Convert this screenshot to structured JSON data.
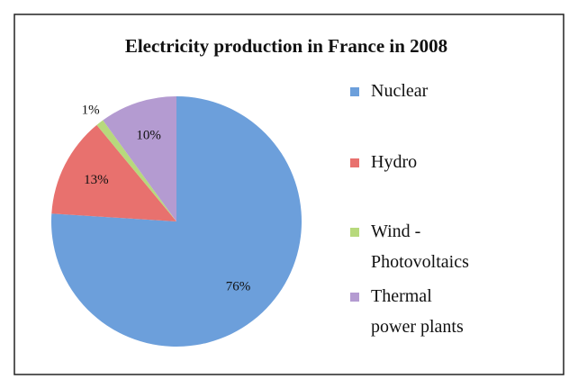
{
  "chart_data": {
    "type": "pie",
    "title": "Electricity production in France in 2008",
    "categories": [
      "Nuclear",
      "Hydro",
      "Wind - Photovoltaics",
      "Thermal power plants"
    ],
    "values": [
      76,
      13,
      1,
      10
    ],
    "value_labels": [
      "76%",
      "13%",
      "1%",
      "10%"
    ],
    "colors": [
      "#6c9fdb",
      "#e8716e",
      "#b7d97c",
      "#b49bd1"
    ],
    "legend": "right"
  }
}
